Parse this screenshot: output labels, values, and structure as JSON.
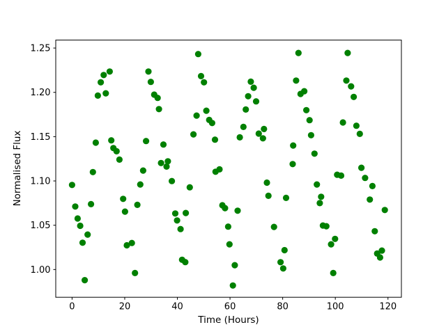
{
  "figure": {
    "background": "#ffffff",
    "plot_background": "#ffffff",
    "spine_color": "#000000"
  },
  "chart_data": {
    "type": "scatter",
    "title": "",
    "xlabel": "Time (Hours)",
    "ylabel": "Normalised Flux",
    "xlim": [
      -6.2,
      125.1
    ],
    "ylim": [
      0.9687,
      1.259
    ],
    "grid": false,
    "legend": null,
    "x_ticks": [
      0,
      20,
      40,
      60,
      80,
      100,
      120
    ],
    "x_tick_labels": [
      "0",
      "20",
      "40",
      "60",
      "80",
      "100",
      "120"
    ],
    "y_ticks": [
      1.0,
      1.05,
      1.1,
      1.15,
      1.2,
      1.25
    ],
    "y_tick_labels": [
      "1.00",
      "1.05",
      "1.10",
      "1.15",
      "1.20",
      "1.25"
    ],
    "marker": {
      "shape": "circle",
      "color": "#008000",
      "radius_px": 4.6
    },
    "points": [
      [
        0.0,
        1.0955
      ],
      [
        1.2,
        1.0711
      ],
      [
        2.1,
        1.0576
      ],
      [
        3.1,
        1.0494
      ],
      [
        4.0,
        1.0303
      ],
      [
        4.8,
        0.988
      ],
      [
        5.9,
        1.0395
      ],
      [
        7.2,
        1.0738
      ],
      [
        7.9,
        1.11
      ],
      [
        9.0,
        1.1432
      ],
      [
        9.8,
        1.1963
      ],
      [
        10.9,
        1.2113
      ],
      [
        12.0,
        1.2196
      ],
      [
        12.8,
        1.1989
      ],
      [
        14.3,
        1.2235
      ],
      [
        14.9,
        1.1458
      ],
      [
        15.7,
        1.1371
      ],
      [
        16.9,
        1.1335
      ],
      [
        18.0,
        1.1241
      ],
      [
        19.4,
        1.0798
      ],
      [
        20.1,
        1.0654
      ],
      [
        20.8,
        1.0274
      ],
      [
        22.7,
        1.03
      ],
      [
        23.9,
        0.996
      ],
      [
        24.8,
        1.073
      ],
      [
        25.9,
        1.096
      ],
      [
        27.0,
        1.1117
      ],
      [
        28.1,
        1.145
      ],
      [
        29.0,
        1.2235
      ],
      [
        29.9,
        1.2118
      ],
      [
        31.2,
        1.1974
      ],
      [
        32.5,
        1.1937
      ],
      [
        33.0,
        1.1811
      ],
      [
        33.8,
        1.1202
      ],
      [
        34.7,
        1.1411
      ],
      [
        35.9,
        1.1162
      ],
      [
        36.4,
        1.1222
      ],
      [
        37.9,
        1.0999
      ],
      [
        39.2,
        1.0633
      ],
      [
        39.9,
        1.0554
      ],
      [
        41.2,
        1.0457
      ],
      [
        41.8,
        1.011
      ],
      [
        43.0,
        1.0084
      ],
      [
        43.2,
        1.0638
      ],
      [
        44.7,
        1.0928
      ],
      [
        46.1,
        1.1526
      ],
      [
        47.3,
        1.1738
      ],
      [
        47.9,
        1.2432
      ],
      [
        49.0,
        1.2183
      ],
      [
        50.1,
        1.2113
      ],
      [
        51.0,
        1.1793
      ],
      [
        52.1,
        1.1688
      ],
      [
        53.2,
        1.1654
      ],
      [
        54.3,
        1.1466
      ],
      [
        54.5,
        1.1104
      ],
      [
        56.0,
        1.1131
      ],
      [
        57.1,
        1.0725
      ],
      [
        58.1,
        1.0693
      ],
      [
        59.3,
        1.0484
      ],
      [
        59.8,
        1.0285
      ],
      [
        61.1,
        0.982
      ],
      [
        61.8,
        1.0049
      ],
      [
        62.9,
        1.0664
      ],
      [
        63.7,
        1.1492
      ],
      [
        65.1,
        1.161
      ],
      [
        66.0,
        1.1806
      ],
      [
        66.9,
        1.1956
      ],
      [
        67.9,
        1.212
      ],
      [
        69.0,
        1.2052
      ],
      [
        69.9,
        1.1898
      ],
      [
        70.9,
        1.1534
      ],
      [
        72.5,
        1.1481
      ],
      [
        72.9,
        1.1586
      ],
      [
        74.0,
        1.0981
      ],
      [
        74.6,
        1.0832
      ],
      [
        76.7,
        1.0481
      ],
      [
        79.2,
        1.0083
      ],
      [
        80.2,
        1.0012
      ],
      [
        80.7,
        1.0219
      ],
      [
        81.3,
        1.0809
      ],
      [
        83.8,
        1.119
      ],
      [
        84.0,
        1.14
      ],
      [
        85.1,
        1.2133
      ],
      [
        86.0,
        1.2445
      ],
      [
        86.8,
        1.1982
      ],
      [
        88.2,
        1.2013
      ],
      [
        89.0,
        1.1799
      ],
      [
        90.2,
        1.1686
      ],
      [
        90.8,
        1.1516
      ],
      [
        92.1,
        1.1308
      ],
      [
        93.0,
        1.096
      ],
      [
        94.1,
        1.075
      ],
      [
        94.6,
        1.0821
      ],
      [
        95.3,
        1.0497
      ],
      [
        96.6,
        1.0489
      ],
      [
        98.4,
        1.0285
      ],
      [
        99.2,
        0.996
      ],
      [
        99.9,
        1.0346
      ],
      [
        100.7,
        1.107
      ],
      [
        102.2,
        1.106
      ],
      [
        102.9,
        1.166
      ],
      [
        104.2,
        1.2133
      ],
      [
        104.7,
        1.2445
      ],
      [
        106.0,
        1.2068
      ],
      [
        107.0,
        1.1948
      ],
      [
        108.0,
        1.1623
      ],
      [
        109.3,
        1.1531
      ],
      [
        109.9,
        1.1149
      ],
      [
        111.3,
        1.1034
      ],
      [
        113.1,
        1.079
      ],
      [
        114.1,
        1.0942
      ],
      [
        115.0,
        1.0432
      ],
      [
        115.9,
        1.018
      ],
      [
        117.0,
        1.0136
      ],
      [
        117.7,
        1.0214
      ],
      [
        118.8,
        1.0672
      ]
    ]
  }
}
